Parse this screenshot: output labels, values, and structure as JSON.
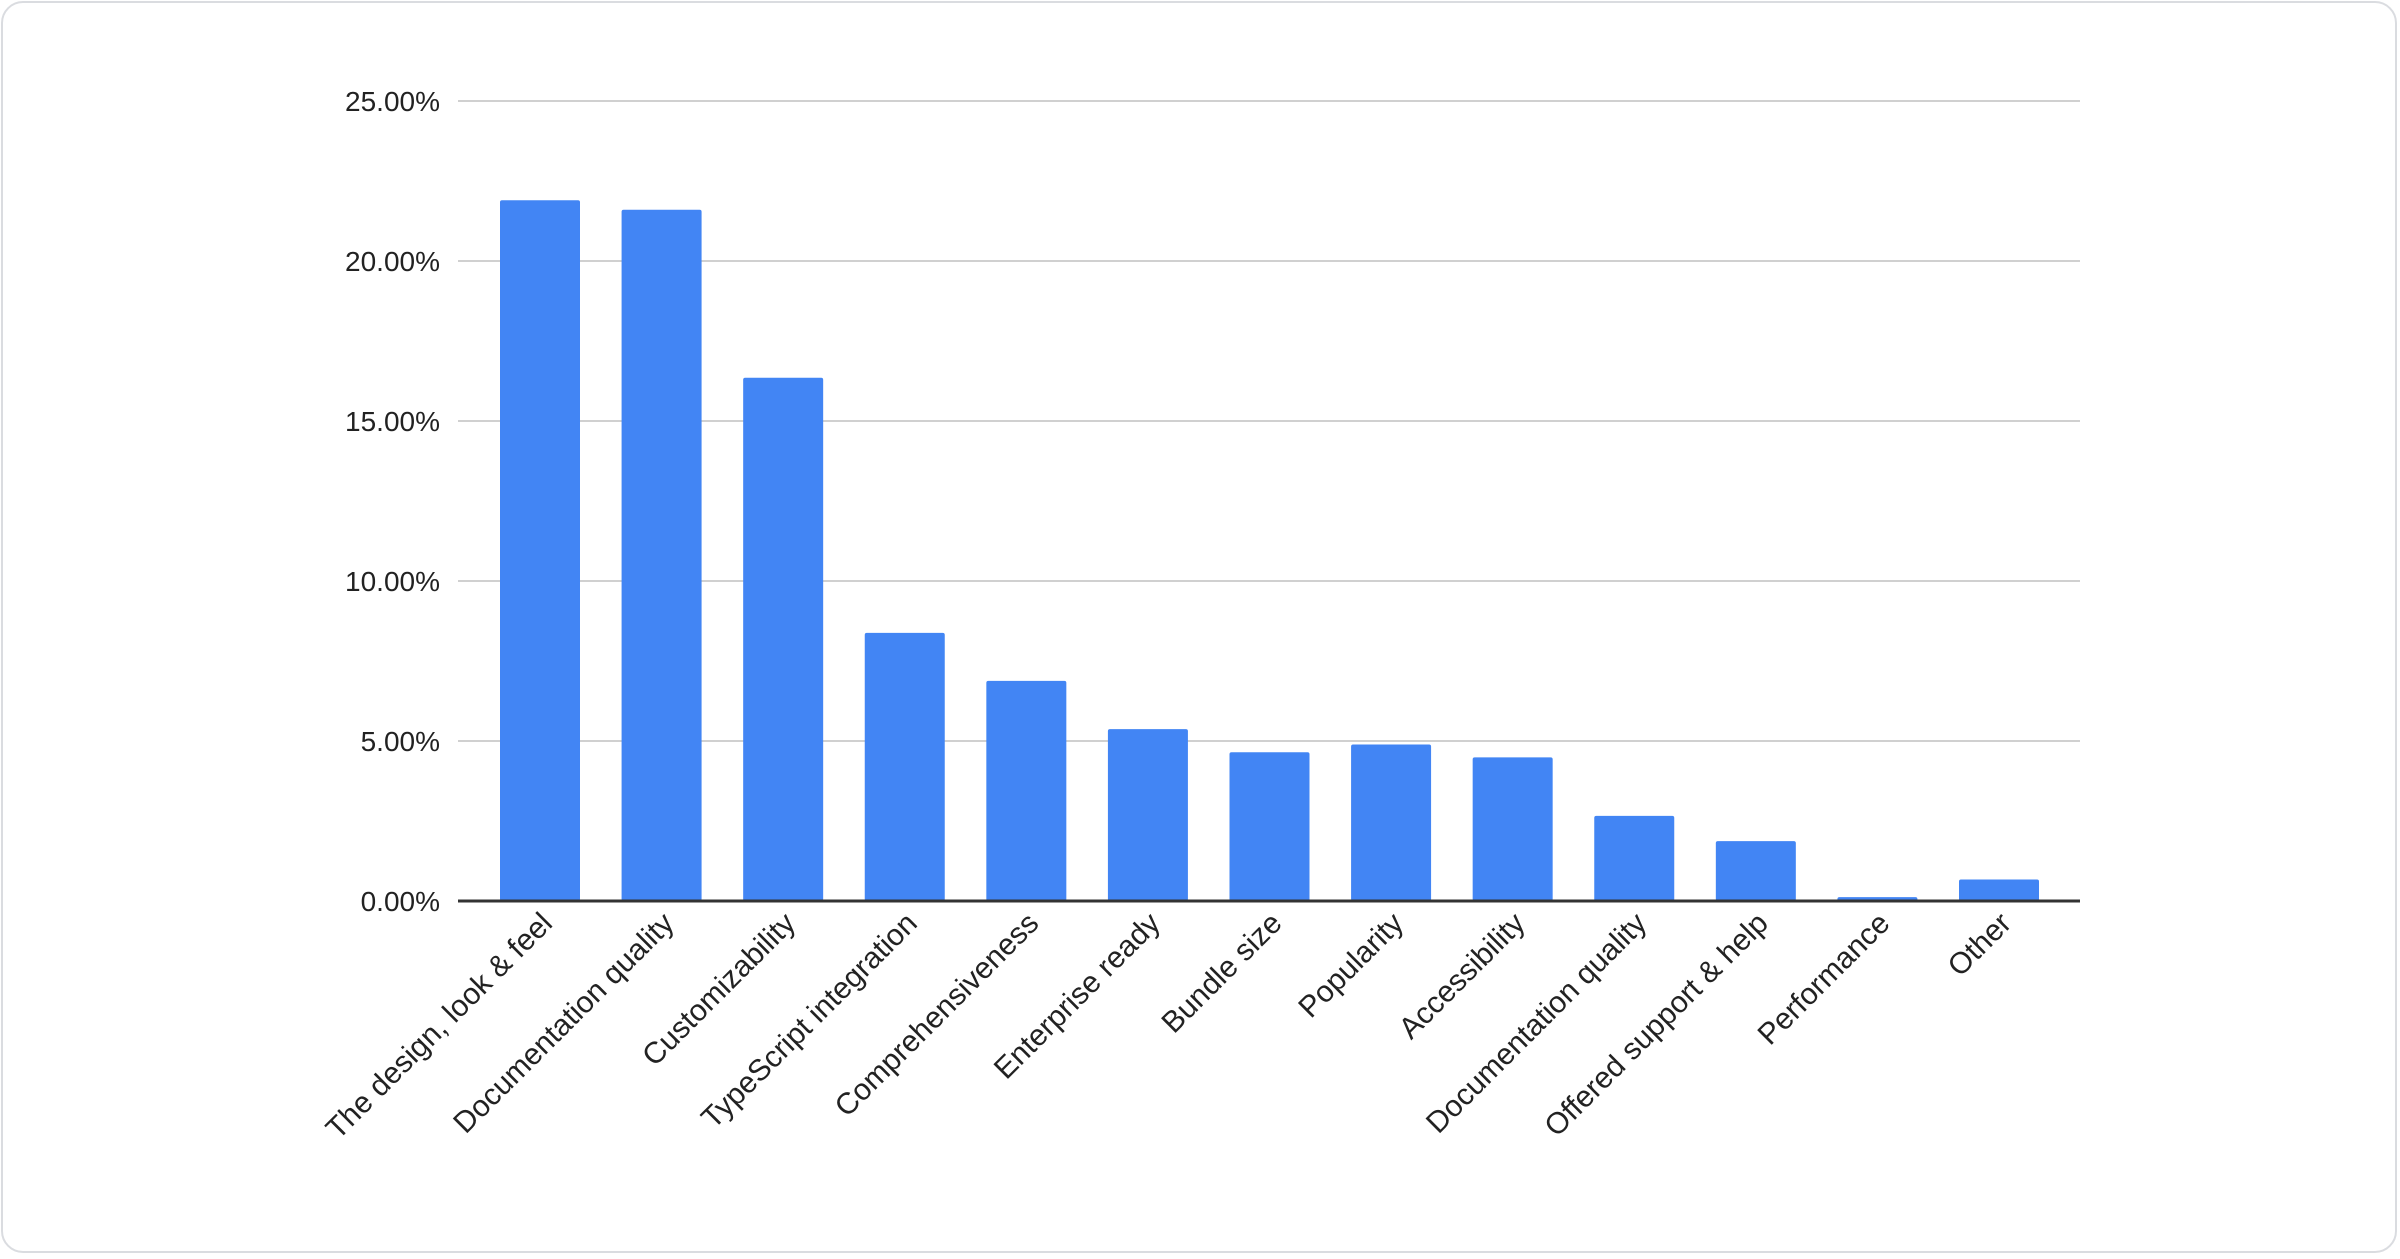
{
  "chart_data": {
    "type": "bar",
    "categories": [
      "The design, look & feel",
      "Documentation quality",
      "Customizability",
      "TypeScript integration",
      "Comprehensiveness",
      "Enterprise ready",
      "Bundle size",
      "Popularity",
      "Accessibility",
      "Documentation quality",
      "Offered support & help",
      "Performance",
      "Other"
    ],
    "values": [
      21.9,
      21.6,
      16.35,
      8.38,
      6.88,
      5.37,
      4.65,
      4.89,
      4.49,
      2.66,
      1.87,
      0.12,
      0.67
    ],
    "yticks": [
      "0.00%",
      "5.00%",
      "10.00%",
      "15.00%",
      "20.00%",
      "25.00%"
    ],
    "ylim": [
      0,
      25
    ],
    "grid": true,
    "bar_color": "#4285f4",
    "title": "",
    "xlabel": "",
    "ylabel": ""
  }
}
